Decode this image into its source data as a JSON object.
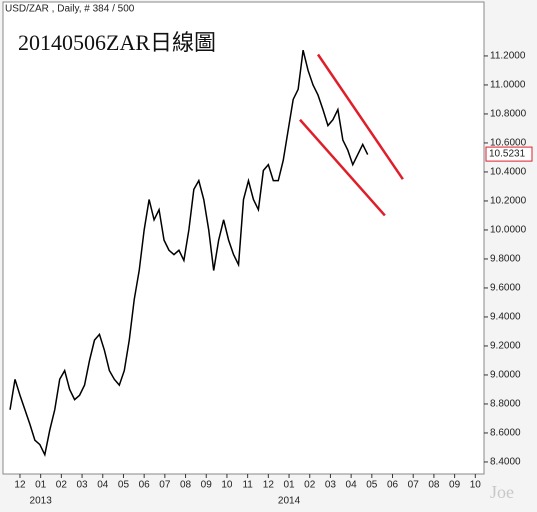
{
  "chart_data": {
    "type": "line",
    "header": "USD/ZAR , Daily, # 384 / 500",
    "title": "20140506ZAR日線圖",
    "watermark": "Joe",
    "x": [
      -0.48,
      -0.24,
      0,
      0.24,
      0.48,
      0.72,
      0.96,
      1.2,
      1.44,
      1.68,
      1.92,
      2.16,
      2.4,
      2.64,
      2.88,
      3.12,
      3.36,
      3.6,
      3.84,
      4.08,
      4.32,
      4.56,
      4.8,
      5.04,
      5.28,
      5.52,
      5.76,
      6,
      6.24,
      6.48,
      6.72,
      6.96,
      7.2,
      7.44,
      7.68,
      7.92,
      8.16,
      8.4,
      8.64,
      8.88,
      9.12,
      9.36,
      9.6,
      9.84,
      10.08,
      10.32,
      10.56,
      10.8,
      11.04,
      11.28,
      11.52,
      11.76,
      12,
      12.24,
      12.48,
      12.72,
      12.96,
      13.2,
      13.44,
      13.68,
      13.92,
      14.16,
      14.4,
      14.64,
      14.88,
      15.12,
      15.36,
      15.6,
      15.84,
      16.08,
      16.32,
      16.56,
      16.8
    ],
    "series": [
      {
        "name": "USD/ZAR",
        "color": "#000000",
        "values": [
          8.76,
          8.97,
          8.86,
          8.76,
          8.66,
          8.55,
          8.52,
          8.45,
          8.62,
          8.76,
          8.97,
          9.03,
          8.9,
          8.83,
          8.86,
          8.93,
          9.1,
          9.24,
          9.28,
          9.17,
          9.03,
          8.97,
          8.93,
          9.03,
          9.24,
          9.52,
          9.72,
          10.0,
          10.21,
          10.07,
          10.14,
          9.93,
          9.86,
          9.83,
          9.86,
          9.79,
          10.0,
          10.28,
          10.34,
          10.21,
          10.0,
          9.72,
          9.93,
          10.07,
          9.93,
          9.83,
          9.76,
          10.21,
          10.34,
          10.21,
          10.14,
          10.41,
          10.45,
          10.34,
          10.34,
          10.48,
          10.69,
          10.9,
          10.97,
          11.24,
          11.1,
          11.0,
          10.93,
          10.83,
          10.72,
          10.76,
          10.83,
          10.62,
          10.55,
          10.45,
          10.52,
          10.59,
          10.52
        ]
      }
    ],
    "last_price": 10.5231,
    "last_price_color": "#e01e2a",
    "trendlines": [
      {
        "color": "#e01e2a",
        "x": [
          14.4,
          18.5
        ],
        "y": [
          11.21,
          10.35
        ]
      },
      {
        "color": "#e01e2a",
        "x": [
          13.53,
          17.63
        ],
        "y": [
          10.76,
          10.1
        ]
      }
    ],
    "xlim": [
      -0.82,
      22.42
    ],
    "ylim": [
      8.317,
      11.572
    ],
    "xticks": [
      {
        "value": 0,
        "label": "12"
      },
      {
        "value": 1,
        "label": "01"
      },
      {
        "value": 2,
        "label": "02"
      },
      {
        "value": 3,
        "label": "03"
      },
      {
        "value": 4,
        "label": "04"
      },
      {
        "value": 5,
        "label": "05"
      },
      {
        "value": 6,
        "label": "06"
      },
      {
        "value": 7,
        "label": "07"
      },
      {
        "value": 8,
        "label": "08"
      },
      {
        "value": 9,
        "label": "09"
      },
      {
        "value": 10,
        "label": "10"
      },
      {
        "value": 11,
        "label": "11"
      },
      {
        "value": 12,
        "label": "12"
      },
      {
        "value": 13,
        "label": "01"
      },
      {
        "value": 14,
        "label": "02"
      },
      {
        "value": 15,
        "label": "03"
      },
      {
        "value": 16,
        "label": "04"
      },
      {
        "value": 17,
        "label": "05"
      },
      {
        "value": 18,
        "label": "06"
      },
      {
        "value": 19,
        "label": "07"
      },
      {
        "value": 20,
        "label": "08"
      },
      {
        "value": 21,
        "label": "09"
      },
      {
        "value": 22,
        "label": "10"
      }
    ],
    "year_labels": [
      {
        "value": 1,
        "label": "2013"
      },
      {
        "value": 13,
        "label": "2014"
      }
    ],
    "yticks": [
      {
        "value": 8.4,
        "label": "8.4000"
      },
      {
        "value": 8.6,
        "label": "8.6000"
      },
      {
        "value": 8.8,
        "label": "8.8000"
      },
      {
        "value": 9.0,
        "label": "9.0000"
      },
      {
        "value": 9.2,
        "label": "9.2000"
      },
      {
        "value": 9.4,
        "label": "9.4000"
      },
      {
        "value": 9.6,
        "label": "9.6000"
      },
      {
        "value": 9.8,
        "label": "9.8000"
      },
      {
        "value": 10.0,
        "label": "10.0000"
      },
      {
        "value": 10.2,
        "label": "10.2000"
      },
      {
        "value": 10.4,
        "label": "10.4000"
      },
      {
        "value": 10.6,
        "label": "10.6000"
      },
      {
        "value": 10.8,
        "label": "10.8000"
      },
      {
        "value": 11.0,
        "label": "11.0000"
      },
      {
        "value": 11.2,
        "label": "11.2000"
      }
    ]
  }
}
